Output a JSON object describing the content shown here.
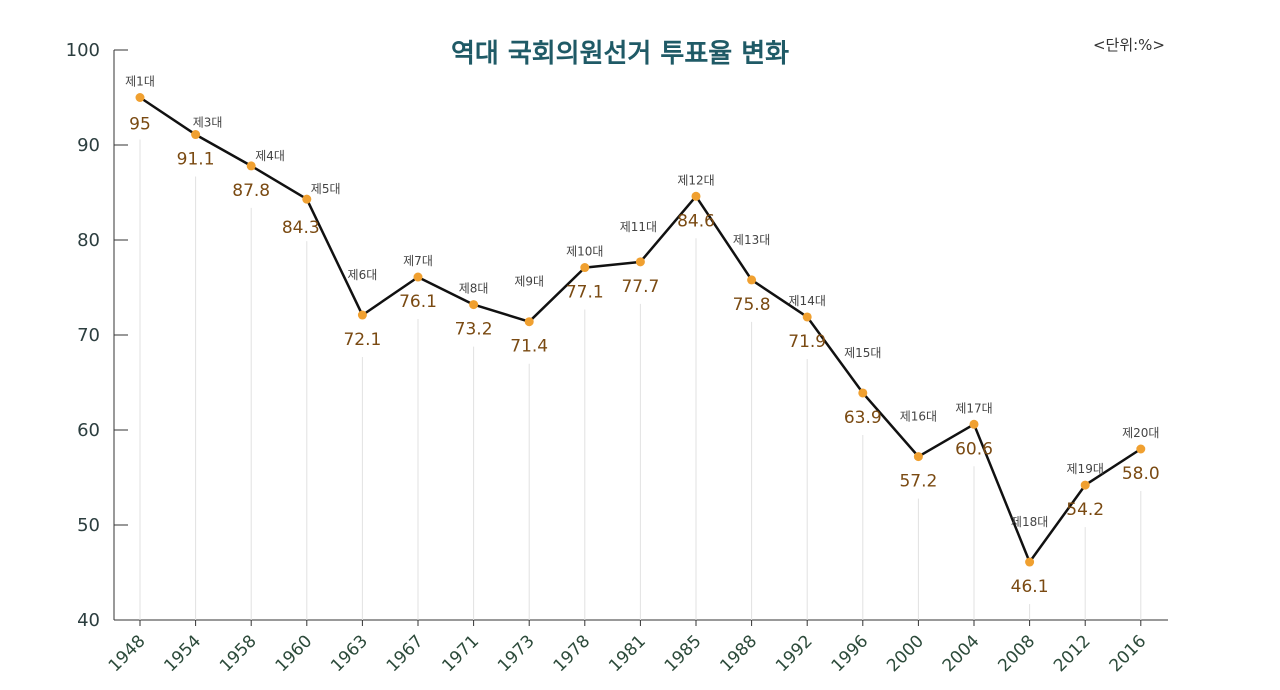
{
  "chart_data": {
    "type": "line",
    "title": "역대 국회의원선거 투표율 변화",
    "unit": "<단위:%>",
    "ylim": [
      40,
      100
    ],
    "y_ticks": [
      "100",
      "90",
      "80",
      "70",
      "60",
      "50",
      "40"
    ],
    "grid": false,
    "line_color": "#111111",
    "point_color": "#f0a030",
    "points": [
      {
        "year": "1948",
        "label": "제1대",
        "value": 95,
        "display": "95"
      },
      {
        "year": "1954",
        "label": "제3대",
        "value": 91.1,
        "display": "91.1"
      },
      {
        "year": "1958",
        "label": "제4대",
        "value": 87.8,
        "display": "87.8"
      },
      {
        "year": "1960",
        "label": "제5대",
        "value": 84.3,
        "display": "84.3"
      },
      {
        "year": "1963",
        "label": "제6대",
        "value": 72.1,
        "display": "72.1"
      },
      {
        "year": "1967",
        "label": "제7대",
        "value": 76.1,
        "display": "76.1"
      },
      {
        "year": "1971",
        "label": "제8대",
        "value": 73.2,
        "display": "73.2"
      },
      {
        "year": "1973",
        "label": "제9대",
        "value": 71.4,
        "display": "71.4"
      },
      {
        "year": "1978",
        "label": "제10대",
        "value": 77.1,
        "display": "77.1"
      },
      {
        "year": "1981",
        "label": "제11대",
        "value": 77.7,
        "display": "77.7"
      },
      {
        "year": "1985",
        "label": "제12대",
        "value": 84.6,
        "display": "84.6"
      },
      {
        "year": "1988",
        "label": "제13대",
        "value": 75.8,
        "display": "75.8"
      },
      {
        "year": "1992",
        "label": "제14대",
        "value": 71.9,
        "display": "71.9"
      },
      {
        "year": "1996",
        "label": "제15대",
        "value": 63.9,
        "display": "63.9"
      },
      {
        "year": "2000",
        "label": "제16대",
        "value": 57.2,
        "display": "57.2"
      },
      {
        "year": "2004",
        "label": "제17대",
        "value": 60.6,
        "display": "60.6"
      },
      {
        "year": "2008",
        "label": "제18대",
        "value": 46.1,
        "display": "46.1"
      },
      {
        "year": "2012",
        "label": "제19대",
        "value": 54.2,
        "display": "54.2"
      },
      {
        "year": "2016",
        "label": "제20대",
        "value": 58.0,
        "display": "58.0"
      }
    ]
  }
}
